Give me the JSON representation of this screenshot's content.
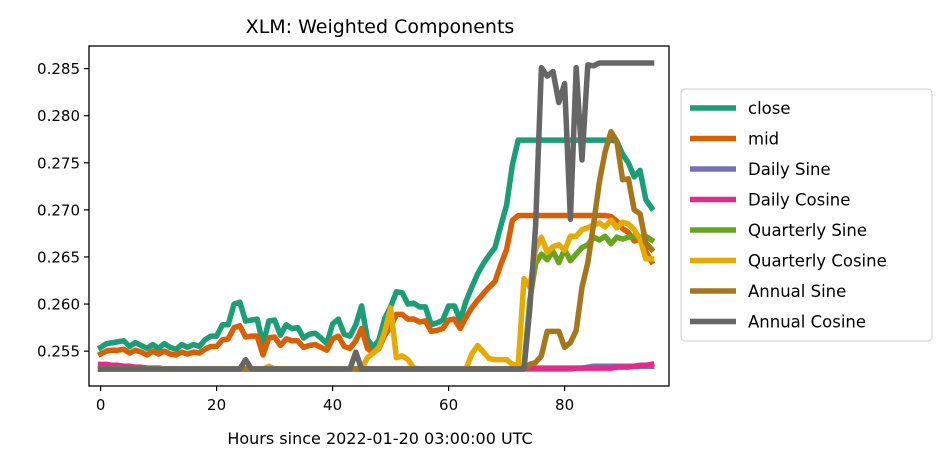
{
  "chart_data": {
    "type": "line",
    "title": "XLM: Weighted Components",
    "xlabel": "Hours since 2022-01-20 03:00:00 UTC",
    "ylabel": "",
    "xlim": [
      -2,
      98
    ],
    "ylim": [
      0.2513,
      0.2874
    ],
    "x_ticks": [
      0,
      20,
      40,
      60,
      80
    ],
    "y_ticks": [
      0.255,
      0.26,
      0.265,
      0.27,
      0.275,
      0.28,
      0.285
    ],
    "y_tick_labels": [
      "0.255",
      "0.260",
      "0.265",
      "0.270",
      "0.275",
      "0.280",
      "0.285"
    ],
    "grid": false,
    "legend_position": "right",
    "x": [
      0,
      1,
      2,
      3,
      4,
      5,
      6,
      7,
      8,
      9,
      10,
      11,
      12,
      13,
      14,
      15,
      16,
      17,
      18,
      19,
      20,
      21,
      22,
      23,
      24,
      25,
      26,
      27,
      28,
      29,
      30,
      31,
      32,
      33,
      34,
      35,
      36,
      37,
      38,
      39,
      40,
      41,
      42,
      43,
      44,
      45,
      46,
      47,
      48,
      49,
      50,
      51,
      52,
      53,
      54,
      55,
      56,
      57,
      58,
      59,
      60,
      61,
      62,
      63,
      64,
      65,
      66,
      67,
      68,
      69,
      70,
      71,
      72,
      73,
      74,
      75,
      76,
      77,
      78,
      79,
      80,
      81,
      82,
      83,
      84,
      85,
      86,
      87,
      88,
      89,
      90,
      91,
      92,
      93,
      94,
      95
    ],
    "series": [
      {
        "name": "close",
        "color": "#1b9e77",
        "values": [
          0.2554,
          0.2558,
          0.2559,
          0.256,
          0.2561,
          0.2555,
          0.2559,
          0.2556,
          0.2553,
          0.2557,
          0.2553,
          0.2558,
          0.2554,
          0.2552,
          0.2557,
          0.2554,
          0.2557,
          0.2555,
          0.2562,
          0.2566,
          0.2566,
          0.2578,
          0.2578,
          0.26,
          0.2602,
          0.2582,
          0.2583,
          0.2584,
          0.2557,
          0.2582,
          0.2583,
          0.2567,
          0.2578,
          0.2574,
          0.2575,
          0.2564,
          0.2568,
          0.2569,
          0.2564,
          0.2558,
          0.2579,
          0.2584,
          0.2568,
          0.2566,
          0.2578,
          0.2598,
          0.2563,
          0.2554,
          0.2562,
          0.2585,
          0.2597,
          0.2613,
          0.2612,
          0.26,
          0.2601,
          0.2597,
          0.2597,
          0.2578,
          0.258,
          0.2583,
          0.2598,
          0.2598,
          0.2583,
          0.2603,
          0.2618,
          0.2632,
          0.2643,
          0.2652,
          0.266,
          0.2683,
          0.2705,
          0.2748,
          0.2774,
          0.2774,
          0.2774,
          0.2774,
          0.2774,
          0.2774,
          0.2774,
          0.2774,
          0.2774,
          0.2774,
          0.2774,
          0.2774,
          0.2774,
          0.2774,
          0.2774,
          0.2774,
          0.2774,
          0.2773,
          0.2759,
          0.275,
          0.2735,
          0.2742,
          0.2711,
          0.2702
        ]
      },
      {
        "name": "mid",
        "color": "#d95f02",
        "values": [
          0.2547,
          0.255,
          0.2551,
          0.2551,
          0.2552,
          0.2548,
          0.2551,
          0.2549,
          0.2546,
          0.255,
          0.2547,
          0.255,
          0.2547,
          0.2546,
          0.2549,
          0.2547,
          0.2549,
          0.2548,
          0.2552,
          0.2555,
          0.2555,
          0.2562,
          0.2563,
          0.2575,
          0.2577,
          0.2565,
          0.2566,
          0.2566,
          0.2546,
          0.2564,
          0.2565,
          0.2556,
          0.2563,
          0.2561,
          0.2561,
          0.2554,
          0.2556,
          0.2557,
          0.2554,
          0.2551,
          0.2563,
          0.2566,
          0.2555,
          0.2553,
          0.2561,
          0.2574,
          0.2553,
          0.2548,
          0.2553,
          0.2567,
          0.2576,
          0.2589,
          0.2589,
          0.2584,
          0.2584,
          0.2581,
          0.2582,
          0.2571,
          0.2572,
          0.2574,
          0.2583,
          0.2584,
          0.2574,
          0.2586,
          0.2596,
          0.2604,
          0.2611,
          0.2618,
          0.2624,
          0.2642,
          0.2658,
          0.2689,
          0.2694,
          0.2694,
          0.2694,
          0.2694,
          0.2694,
          0.2694,
          0.2694,
          0.2694,
          0.2694,
          0.2694,
          0.2694,
          0.2694,
          0.2694,
          0.2694,
          0.2694,
          0.2694,
          0.2693,
          0.2688,
          0.268,
          0.2676,
          0.2667,
          0.2669,
          0.2656,
          0.2645
        ]
      },
      {
        "name": "Daily Sine",
        "color": "#7570b3",
        "values": [
          0.2531,
          0.2531,
          0.2531,
          0.2531,
          0.2531,
          0.2531,
          0.2531,
          0.2531,
          0.2531,
          0.2531,
          0.2531,
          0.2531,
          0.2531,
          0.2531,
          0.2531,
          0.2531,
          0.2531,
          0.2531,
          0.2531,
          0.2531,
          0.2531,
          0.2531,
          0.2531,
          0.2531,
          0.2531,
          0.2531,
          0.2531,
          0.2531,
          0.2531,
          0.2531,
          0.2531,
          0.2531,
          0.2531,
          0.2531,
          0.2531,
          0.2531,
          0.2531,
          0.2531,
          0.2531,
          0.2531,
          0.2531,
          0.2531,
          0.2531,
          0.2531,
          0.2531,
          0.2531,
          0.2531,
          0.2531,
          0.2531,
          0.2531,
          0.2531,
          0.2531,
          0.2531,
          0.2531,
          0.2531,
          0.2531,
          0.2531,
          0.2531,
          0.2531,
          0.2531,
          0.2531,
          0.2531,
          0.2531,
          0.2531,
          0.2531,
          0.2531,
          0.2531,
          0.2531,
          0.2531,
          0.2531,
          0.2531,
          0.2531,
          0.2531,
          0.2531,
          0.2531,
          0.2531,
          0.2531,
          0.2531,
          0.2531,
          0.2531,
          0.2531,
          0.2531,
          0.2532,
          0.2532,
          0.2533,
          0.2534,
          0.2534,
          0.2534,
          0.2534,
          0.2534,
          0.2534,
          0.2534,
          0.2534,
          0.2534,
          0.2534,
          0.2534
        ]
      },
      {
        "name": "Daily Cosine",
        "color": "#e7298a",
        "values": [
          0.2536,
          0.2536,
          0.2535,
          0.2535,
          0.2534,
          0.2534,
          0.2533,
          0.2533,
          0.2532,
          0.2532,
          0.2532,
          0.2531,
          0.2531,
          0.2531,
          0.2531,
          0.2531,
          0.2531,
          0.2531,
          0.2531,
          0.2531,
          0.2531,
          0.2531,
          0.2531,
          0.2531,
          0.2531,
          0.2531,
          0.2531,
          0.2531,
          0.2531,
          0.2531,
          0.2531,
          0.2531,
          0.2531,
          0.2531,
          0.2531,
          0.2531,
          0.2531,
          0.2531,
          0.2531,
          0.2531,
          0.2531,
          0.2531,
          0.2531,
          0.2531,
          0.2531,
          0.2531,
          0.2531,
          0.2531,
          0.2531,
          0.2531,
          0.2531,
          0.2531,
          0.2531,
          0.2531,
          0.2531,
          0.2531,
          0.2531,
          0.2531,
          0.2531,
          0.2531,
          0.2531,
          0.2531,
          0.2531,
          0.2531,
          0.2531,
          0.2531,
          0.2531,
          0.2531,
          0.2531,
          0.2531,
          0.2531,
          0.2531,
          0.2532,
          0.2532,
          0.2532,
          0.2532,
          0.2532,
          0.2532,
          0.2532,
          0.2532,
          0.2532,
          0.2532,
          0.2532,
          0.2532,
          0.2532,
          0.2532,
          0.2532,
          0.2532,
          0.2532,
          0.2533,
          0.2533,
          0.2533,
          0.2534,
          0.2535,
          0.2535,
          0.2536
        ]
      },
      {
        "name": "Quarterly Sine",
        "color": "#66a61e",
        "values": [
          0.2531,
          0.2531,
          0.2531,
          0.2531,
          0.2531,
          0.2531,
          0.2531,
          0.2531,
          0.2531,
          0.2531,
          0.2531,
          0.2531,
          0.2531,
          0.2531,
          0.2531,
          0.2531,
          0.2531,
          0.2531,
          0.2531,
          0.2531,
          0.2531,
          0.2531,
          0.2531,
          0.2531,
          0.2531,
          0.2531,
          0.2531,
          0.2531,
          0.2531,
          0.2531,
          0.2531,
          0.2531,
          0.2531,
          0.2531,
          0.2531,
          0.2531,
          0.2531,
          0.2531,
          0.2531,
          0.2531,
          0.2531,
          0.2531,
          0.2531,
          0.2531,
          0.2531,
          0.2531,
          0.2531,
          0.2531,
          0.2531,
          0.2531,
          0.2531,
          0.2531,
          0.2531,
          0.2531,
          0.2531,
          0.2531,
          0.2531,
          0.2531,
          0.2531,
          0.2531,
          0.2531,
          0.2531,
          0.2531,
          0.2531,
          0.2531,
          0.2531,
          0.2531,
          0.2531,
          0.2531,
          0.2531,
          0.2531,
          0.2531,
          0.2531,
          0.2534,
          0.2604,
          0.2643,
          0.2653,
          0.2647,
          0.2656,
          0.2644,
          0.2658,
          0.2646,
          0.2653,
          0.266,
          0.2663,
          0.2671,
          0.2668,
          0.2672,
          0.2664,
          0.2671,
          0.2669,
          0.2671,
          0.2672,
          0.2671,
          0.2672,
          0.2668
        ]
      },
      {
        "name": "Quarterly Cosine",
        "color": "#e6ab02",
        "values": [
          0.2531,
          0.2531,
          0.2531,
          0.2531,
          0.2531,
          0.2531,
          0.2531,
          0.2531,
          0.2531,
          0.2531,
          0.2531,
          0.2531,
          0.2531,
          0.2531,
          0.2531,
          0.2531,
          0.2531,
          0.2531,
          0.2531,
          0.2531,
          0.2531,
          0.2531,
          0.2531,
          0.2531,
          0.2531,
          0.2531,
          0.2531,
          0.2531,
          0.2531,
          0.2534,
          0.2531,
          0.2531,
          0.2531,
          0.2531,
          0.2531,
          0.2531,
          0.2531,
          0.2531,
          0.2531,
          0.2531,
          0.2531,
          0.2531,
          0.2531,
          0.2531,
          0.2531,
          0.2531,
          0.2543,
          0.2548,
          0.2554,
          0.2571,
          0.2596,
          0.2543,
          0.2545,
          0.2541,
          0.2532,
          0.2531,
          0.2531,
          0.2531,
          0.2531,
          0.2531,
          0.2531,
          0.2531,
          0.2531,
          0.2531,
          0.2547,
          0.2556,
          0.2549,
          0.2542,
          0.2541,
          0.2541,
          0.2541,
          0.2536,
          0.2535,
          0.2627,
          0.2618,
          0.2658,
          0.2671,
          0.2655,
          0.2661,
          0.2663,
          0.2657,
          0.2672,
          0.2672,
          0.2679,
          0.2681,
          0.2684,
          0.2686,
          0.2682,
          0.2689,
          0.2681,
          0.2687,
          0.2685,
          0.2679,
          0.2669,
          0.2648,
          0.2648
        ]
      },
      {
        "name": "Annual Sine",
        "color": "#a6761d",
        "values": [
          0.2531,
          0.2531,
          0.2531,
          0.2531,
          0.2531,
          0.2531,
          0.2531,
          0.2531,
          0.2531,
          0.2531,
          0.2531,
          0.2531,
          0.2531,
          0.2531,
          0.2531,
          0.2531,
          0.2531,
          0.2531,
          0.2531,
          0.2531,
          0.2531,
          0.2531,
          0.2531,
          0.2531,
          0.2531,
          0.2531,
          0.2531,
          0.2531,
          0.2531,
          0.2531,
          0.2531,
          0.2531,
          0.2531,
          0.2531,
          0.2531,
          0.2531,
          0.2531,
          0.2531,
          0.2531,
          0.2531,
          0.2531,
          0.2531,
          0.2531,
          0.2531,
          0.2531,
          0.2531,
          0.2531,
          0.2531,
          0.2531,
          0.2531,
          0.2531,
          0.2531,
          0.2531,
          0.2531,
          0.2531,
          0.2531,
          0.2531,
          0.2531,
          0.2531,
          0.2531,
          0.2531,
          0.2531,
          0.2531,
          0.2531,
          0.2531,
          0.2531,
          0.2531,
          0.2531,
          0.2531,
          0.2531,
          0.2531,
          0.2531,
          0.2531,
          0.2531,
          0.2536,
          0.2538,
          0.2545,
          0.2571,
          0.2571,
          0.2571,
          0.2554,
          0.2559,
          0.2572,
          0.2618,
          0.2644,
          0.2685,
          0.273,
          0.2762,
          0.2783,
          0.2773,
          0.2732,
          0.2733,
          0.27,
          0.2696,
          0.2665,
          0.2658
        ]
      },
      {
        "name": "Annual Cosine",
        "color": "#666666",
        "values": [
          0.2531,
          0.2531,
          0.2531,
          0.2531,
          0.2531,
          0.2531,
          0.2531,
          0.2531,
          0.2531,
          0.2531,
          0.2531,
          0.2531,
          0.2531,
          0.2531,
          0.2531,
          0.2531,
          0.2531,
          0.2531,
          0.2531,
          0.2531,
          0.2531,
          0.2531,
          0.2531,
          0.2531,
          0.2531,
          0.2541,
          0.2531,
          0.2531,
          0.2531,
          0.2531,
          0.2531,
          0.2531,
          0.2531,
          0.2531,
          0.2531,
          0.2531,
          0.2531,
          0.2531,
          0.2531,
          0.2531,
          0.2531,
          0.2531,
          0.2531,
          0.2531,
          0.2549,
          0.2531,
          0.2531,
          0.2531,
          0.2531,
          0.2531,
          0.2531,
          0.2531,
          0.2531,
          0.2531,
          0.2531,
          0.2531,
          0.2531,
          0.2531,
          0.2531,
          0.2531,
          0.2531,
          0.2531,
          0.2531,
          0.2531,
          0.2531,
          0.2531,
          0.2531,
          0.2531,
          0.2531,
          0.2531,
          0.2531,
          0.2531,
          0.2531,
          0.2531,
          0.2595,
          0.2683,
          0.2851,
          0.2842,
          0.2847,
          0.2814,
          0.2834,
          0.269,
          0.2851,
          0.2753,
          0.2854,
          0.2853,
          0.2856,
          0.2856,
          0.2856,
          0.2856,
          0.2856,
          0.2856,
          0.2856,
          0.2856,
          0.2856,
          0.2856
        ]
      }
    ]
  }
}
